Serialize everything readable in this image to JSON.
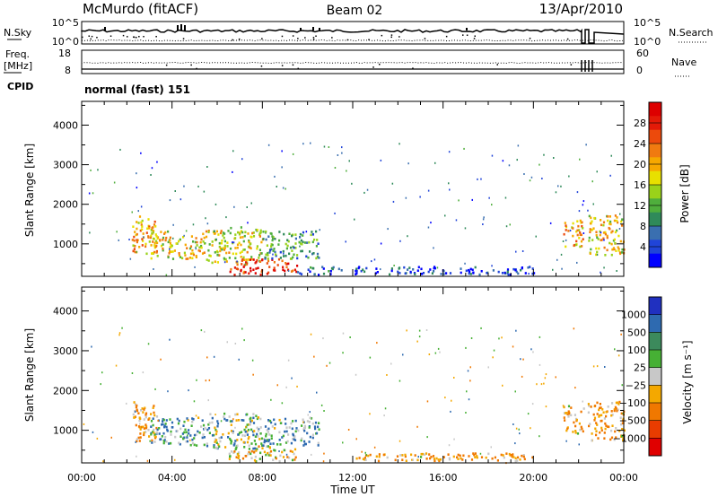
{
  "header": {
    "station": "McMurdo (fitACF)",
    "beam": "Beam 02",
    "date": "13/Apr/2010"
  },
  "chart_data": [
    {
      "type": "line",
      "left_label": "N.Sky",
      "right_label": "N.Search",
      "left_ticks": [
        "10^5",
        "10^0"
      ],
      "right_ticks": [
        "10^5",
        "10^0"
      ]
    },
    {
      "type": "line",
      "left_label_lines": [
        "Freq.",
        "[MHz]"
      ],
      "right_label": "Nave",
      "left_ticks": [
        "18",
        "8"
      ],
      "right_ticks": [
        "60",
        "0"
      ]
    },
    {
      "type": "table",
      "label": "CPID",
      "value": "normal (fast) 151"
    },
    {
      "type": "heatmap",
      "ylabel": "Slant Range [km]",
      "y_ticks": [
        1000,
        2000,
        3000,
        4000
      ],
      "ylim": [
        180,
        4600
      ],
      "xlim": [
        0,
        24
      ],
      "colorbar": {
        "label": "Power [dB]",
        "range": [
          0,
          32
        ],
        "ticks": [
          4,
          8,
          12,
          16,
          20,
          24,
          28
        ],
        "colors": [
          "#0000ff",
          "#2044d8",
          "#3a6fb0",
          "#2f8a5a",
          "#4fae3c",
          "#9ad21a",
          "#e8e000",
          "#f6a800",
          "#f07a10",
          "#ec4a0c",
          "#e41a08",
          "#dd0000"
        ]
      },
      "echo_regions": [
        {
          "t": [
            2.2,
            3.3
          ],
          "r": [
            700,
            1700
          ],
          "level": 20
        },
        {
          "t": [
            3.0,
            5.5
          ],
          "r": [
            600,
            1300
          ],
          "level": 18
        },
        {
          "t": [
            5.5,
            8.0
          ],
          "r": [
            500,
            1400
          ],
          "level": 16
        },
        {
          "t": [
            6.5,
            9.5
          ],
          "r": [
            200,
            600
          ],
          "level": 27
        },
        {
          "t": [
            8.0,
            10.5
          ],
          "r": [
            600,
            1300
          ],
          "level": 10
        },
        {
          "t": [
            9.5,
            11.5
          ],
          "r": [
            200,
            400
          ],
          "level": 6
        },
        {
          "t": [
            21.3,
            22.2
          ],
          "r": [
            900,
            1600
          ],
          "level": 20
        },
        {
          "t": [
            22.4,
            24.0
          ],
          "r": [
            700,
            1700
          ],
          "level": 18
        },
        {
          "t": [
            12.0,
            20.0
          ],
          "r": [
            200,
            400
          ],
          "level": 4
        }
      ]
    },
    {
      "type": "heatmap",
      "ylabel": "Slant Range [km]",
      "xlabel": "Time UT",
      "x_ticks": [
        "00:00",
        "04:00",
        "08:00",
        "12:00",
        "16:00",
        "20:00",
        "00:00"
      ],
      "y_ticks": [
        1000,
        2000,
        3000,
        4000
      ],
      "ylim": [
        180,
        4600
      ],
      "xlim": [
        0,
        24
      ],
      "colorbar": {
        "label": "Velocity [m s⁻¹]",
        "tick_labels": [
          "1000",
          "500",
          "100",
          "25",
          "−25",
          "−100",
          "−500",
          "−1000"
        ],
        "colors": [
          "#2030c0",
          "#2e6ab0",
          "#3c8a5c",
          "#46b034",
          "#c8c8c8",
          "#f4a800",
          "#f07800",
          "#e83c00",
          "#e00000"
        ]
      },
      "echo_regions": [
        {
          "t": [
            2.2,
            3.3
          ],
          "r": [
            700,
            1700
          ],
          "v": -100
        },
        {
          "t": [
            3.0,
            5.5
          ],
          "r": [
            600,
            1300
          ],
          "v": 100
        },
        {
          "t": [
            5.5,
            8.0
          ],
          "r": [
            500,
            1400
          ],
          "v": 50
        },
        {
          "t": [
            6.5,
            9.5
          ],
          "r": [
            200,
            600
          ],
          "v": -50
        },
        {
          "t": [
            8.0,
            10.5
          ],
          "r": [
            600,
            1300
          ],
          "v": 100
        },
        {
          "t": [
            21.3,
            22.2
          ],
          "r": [
            900,
            1600
          ],
          "v": -100
        },
        {
          "t": [
            22.4,
            24.0
          ],
          "r": [
            700,
            1700
          ],
          "v": -100
        },
        {
          "t": [
            12.0,
            20.0
          ],
          "r": [
            200,
            400
          ],
          "v": -100
        }
      ]
    }
  ]
}
